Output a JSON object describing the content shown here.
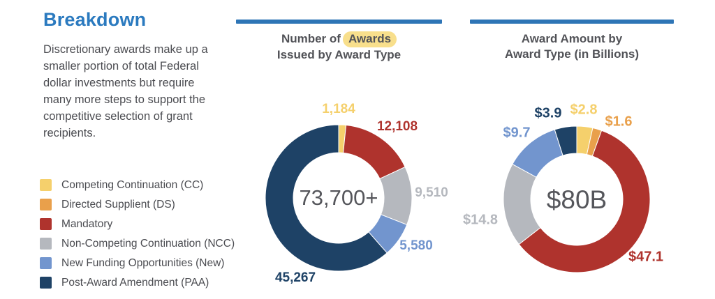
{
  "page": {
    "title": "Breakdown",
    "description_lines": [
      "Discretionary awards make up a",
      "smaller portion of total Federal",
      "dollar investments but require",
      "many more steps to support the",
      "competitive selection of grant",
      "recipients."
    ]
  },
  "colors": {
    "heading": "#2B7ABF",
    "divider": "#2E75B6",
    "body_text": "#4B4C51",
    "title_text": "#515257",
    "center_text": "#55565B",
    "highlight": "#F8DF8C"
  },
  "legend": {
    "items": [
      {
        "label": "Competing Continuation (CC)",
        "color": "#F5D06C"
      },
      {
        "label": "Directed Supplient (DS)",
        "color": "#E9A04B"
      },
      {
        "label": "Mandatory",
        "color": "#AF332D"
      },
      {
        "label": "Non-Competing Continuation (NCC)",
        "color": "#B5B8BE"
      },
      {
        "label": "New Funding Opportunities (New)",
        "color": "#7295CE"
      },
      {
        "label": "Post-Award Amendment (PAA)",
        "color": "#1E4266"
      }
    ]
  },
  "chart_data": [
    {
      "type": "donut",
      "title": "Number of Awards Issued by Award Type",
      "title_prefix": "Number of",
      "title_highlight": "Awards",
      "title_line2": "Issued by Award Type",
      "center_label": "73,700+",
      "legend_position": "left",
      "segments": [
        {
          "name": "Competing Continuation (CC)",
          "label": "1,184",
          "value": 1184,
          "color": "#F5D06C"
        },
        {
          "name": "Mandatory",
          "label": "12,108",
          "value": 12108,
          "color": "#AF332D"
        },
        {
          "name": "Non-Competing Continuation (NCC)",
          "label": "9,510",
          "value": 9510,
          "color": "#B5B8BE"
        },
        {
          "name": "New Funding Opportunities (New)",
          "label": "5,580",
          "value": 5580,
          "color": "#7295CE"
        },
        {
          "name": "Post-Award Amendment (PAA)",
          "label": "45,267",
          "value": 45267,
          "color": "#1E4266"
        }
      ]
    },
    {
      "type": "donut",
      "title": "Award Amount by Award Type (in Billions)",
      "title_line1": "Award Amount by",
      "title_line2": "Award Type (in Billions)",
      "center_label": "$80B",
      "legend_position": "left",
      "segments": [
        {
          "name": "Competing Continuation (CC)",
          "label": "$2.8",
          "value": 2.8,
          "color": "#F5D06C"
        },
        {
          "name": "Directed Supplient (DS)",
          "label": "$1.6",
          "value": 1.6,
          "color": "#E9A04B"
        },
        {
          "name": "Mandatory",
          "label": "$47.1",
          "value": 47.1,
          "color": "#AF332D"
        },
        {
          "name": "Non-Competing Continuation (NCC)",
          "label": "$14.8",
          "value": 14.8,
          "color": "#B5B8BE"
        },
        {
          "name": "New Funding Opportunities (New)",
          "label": "$9.7",
          "value": 9.7,
          "color": "#7295CE"
        },
        {
          "name": "Post-Award Amendment (PAA)",
          "label": "$3.9",
          "value": 3.9,
          "color": "#1E4266"
        }
      ]
    }
  ]
}
